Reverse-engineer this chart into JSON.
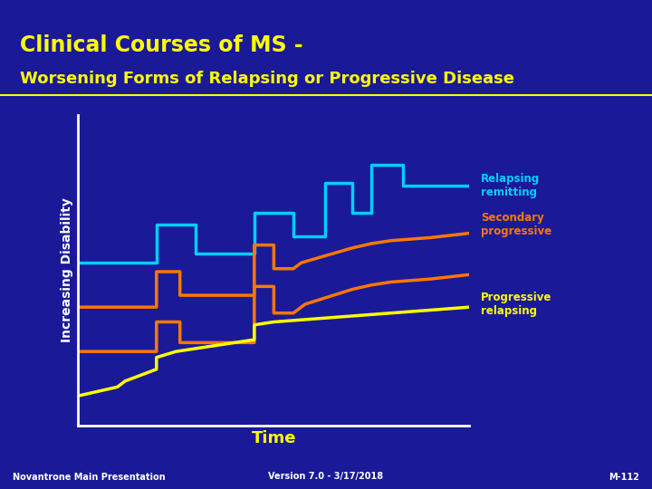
{
  "title_line1": "Clinical Courses of MS -",
  "title_line2": "Worsening Forms of Relapsing or Progressive Disease",
  "title_color": "#FFFF00",
  "bg_color": "#1a1a99",
  "axis_color": "#ffffff",
  "ylabel": "Increasing Disability",
  "xlabel": "Time",
  "xlabel_color": "#FFFF00",
  "ylabel_color": "#ffffff",
  "footer_left": "Novantrone Main Presentation",
  "footer_center": "Version 7.0 - 3/17/2018",
  "footer_right": "M-112",
  "footer_color": "#ffffff",
  "separator_color": "#FFFF00",
  "relapsing_remitting": {
    "color": "#00cfff",
    "label_color": "#00cfff",
    "label": "Relapsing\nremitting",
    "x": [
      0,
      2,
      2,
      3,
      3,
      4.5,
      4.5,
      5.5,
      5.5,
      6.3,
      6.3,
      7.0,
      7.0,
      7.5,
      7.5,
      8.3,
      8.3,
      10
    ],
    "y": [
      5.5,
      5.5,
      6.8,
      6.8,
      5.8,
      5.8,
      7.2,
      7.2,
      6.4,
      6.4,
      8.2,
      8.2,
      7.2,
      7.2,
      8.8,
      8.8,
      8.1,
      8.1
    ]
  },
  "secondary_progressive_upper": {
    "color": "#ff7700",
    "label_color": "#ff7700",
    "label": "Secondary\nprogressive",
    "x": [
      0,
      2,
      2,
      2.6,
      2.6,
      4.5,
      4.5,
      5.0,
      5.0,
      5.5,
      5.7,
      7.0,
      7.5,
      8.0,
      8.5,
      9.0,
      10
    ],
    "y": [
      4.0,
      4.0,
      5.2,
      5.2,
      4.4,
      4.4,
      6.1,
      6.1,
      5.3,
      5.3,
      5.5,
      6.0,
      6.15,
      6.25,
      6.3,
      6.35,
      6.5
    ]
  },
  "secondary_progressive_lower": {
    "color": "#ff7700",
    "x": [
      0,
      2,
      2,
      2.6,
      2.6,
      4.5,
      4.5,
      5.0,
      5.0,
      5.5,
      5.8,
      7.0,
      7.5,
      8.0,
      8.5,
      9.0,
      10
    ],
    "y": [
      2.5,
      2.5,
      3.5,
      3.5,
      2.8,
      2.8,
      4.7,
      4.7,
      3.8,
      3.8,
      4.1,
      4.6,
      4.75,
      4.85,
      4.9,
      4.95,
      5.1
    ]
  },
  "progressive_relapsing": {
    "color": "#ffff00",
    "label_color": "#ffff00",
    "label": "Progressive\nrelapsing",
    "x": [
      0,
      1.0,
      1.2,
      2.0,
      2.0,
      2.5,
      4.5,
      4.5,
      5.0,
      6.0,
      7.0,
      8.0,
      9.0,
      10
    ],
    "y": [
      1.0,
      1.3,
      1.5,
      1.9,
      2.3,
      2.5,
      2.9,
      3.4,
      3.5,
      3.6,
      3.7,
      3.8,
      3.9,
      4.0
    ]
  },
  "xlim": [
    0,
    10
  ],
  "ylim": [
    0,
    10.5
  ]
}
